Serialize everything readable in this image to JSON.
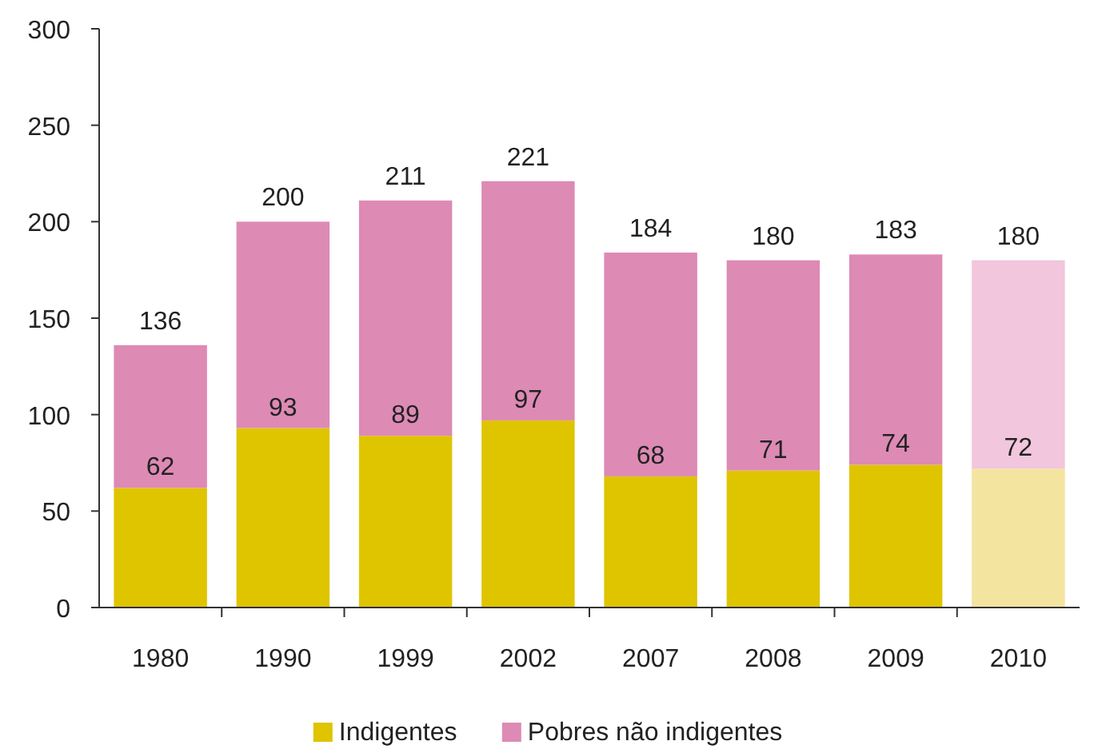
{
  "chart_data": {
    "type": "bar",
    "stacked": true,
    "categories": [
      "1980",
      "1990",
      "1999",
      "2002",
      "2007",
      "2008",
      "2009",
      "2010"
    ],
    "series": [
      {
        "name": "Indigentes",
        "color": "#dfc400",
        "colors": [
          "#dfc400",
          "#dfc400",
          "#dfc400",
          "#dfc400",
          "#dfc400",
          "#dfc400",
          "#dfc400",
          "#f3e4a0"
        ],
        "values": [
          62,
          93,
          89,
          97,
          68,
          71,
          74,
          72
        ],
        "value_labels": [
          "62",
          "93",
          "89",
          "97",
          "68",
          "71",
          "74",
          "72"
        ]
      },
      {
        "name": "Pobres não indigentes",
        "color": "#dd8ab5",
        "colors": [
          "#dd8ab5",
          "#dd8ab5",
          "#dd8ab5",
          "#dd8ab5",
          "#dd8ab5",
          "#dd8ab5",
          "#dd8ab5",
          "#f2c6dc"
        ],
        "values": [
          74,
          107,
          122,
          124,
          116,
          109,
          109,
          108
        ]
      }
    ],
    "totals": [
      "136",
      "200",
      "211",
      "221",
      "184",
      "180",
      "183",
      "180"
    ],
    "ylim": [
      0,
      300
    ],
    "yticks": [
      0,
      50,
      100,
      150,
      200,
      250,
      300
    ],
    "grid": false,
    "legend": "bottom"
  }
}
